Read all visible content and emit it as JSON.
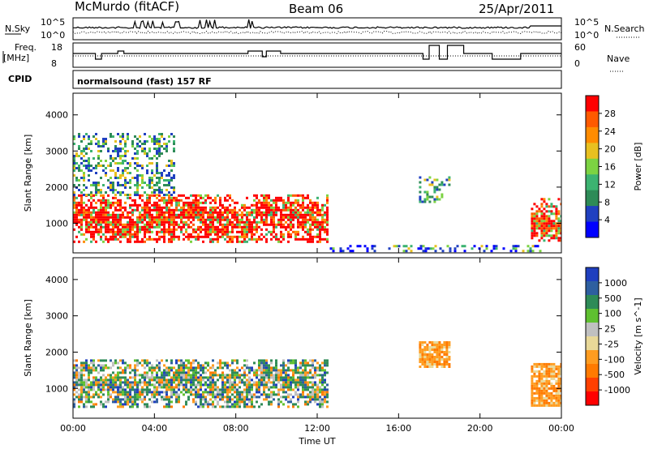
{
  "header": {
    "station": "McMurdo (fitACF)",
    "beam": "Beam 06",
    "date": "25/Apr/2011"
  },
  "top_panels": {
    "nsky_label": "N.Sky",
    "nsearch_label": "N.Search",
    "noise_ticks_left": [
      "10^5",
      "10^0"
    ],
    "noise_ticks_right": [
      "10^5",
      "10^0"
    ],
    "freq_label_line1": "Freq.",
    "freq_label_line2": "[MHz]",
    "freq_ticks": [
      "18",
      "8"
    ],
    "nave_label": "Nave",
    "nave_ticks": [
      "60",
      "0"
    ],
    "cpid_label": "CPID",
    "cpid_text": "normalsound (fast) 157 RF"
  },
  "colors": {
    "power_scale": [
      "#0000ff",
      "#2040c0",
      "#2e8b57",
      "#3cb371",
      "#7cd342",
      "#e8c020",
      "#ff8c00",
      "#ff5a00",
      "#ff0000"
    ],
    "velocity_scale": [
      "#1f3fbf",
      "#2e5fa0",
      "#2e8b57",
      "#5fc030",
      "#c0c0c0",
      "#e8d898",
      "#ff9c20",
      "#ff7a00",
      "#ff4000",
      "#ff0000"
    ],
    "accent": "#000000"
  },
  "chart_data": [
    {
      "type": "heatmap",
      "title": "",
      "xlabel": "Time UT",
      "ylabel": "Slant Range [km]",
      "x_ticks": [
        "00:00",
        "04:00",
        "08:00",
        "12:00",
        "16:00",
        "20:00",
        "00:00"
      ],
      "y_ticks": [
        "1000",
        "2000",
        "3000",
        "4000"
      ],
      "ylim": [
        180,
        4600
      ],
      "colorbar": {
        "label": "Power [dB]",
        "ticks": [
          "4",
          "8",
          "12",
          "16",
          "20",
          "24",
          "28"
        ],
        "range": [
          0,
          30
        ]
      },
      "regions": [
        {
          "t_start": "00:00",
          "t_end": "12:30",
          "range_km": [
            500,
            1800
          ],
          "level": "high"
        },
        {
          "t_start": "00:00",
          "t_end": "05:00",
          "range_km": [
            1800,
            3500
          ],
          "level": "patchy"
        },
        {
          "t_start": "12:30",
          "t_end": "23:00",
          "range_km": [
            200,
            400
          ],
          "level": "low"
        },
        {
          "t_start": "17:00",
          "t_end": "18:30",
          "range_km": [
            1600,
            2300
          ],
          "level": "patchy"
        },
        {
          "t_start": "22:30",
          "t_end": "24:00",
          "range_km": [
            500,
            1700
          ],
          "level": "high"
        }
      ]
    },
    {
      "type": "heatmap",
      "title": "",
      "xlabel": "Time UT",
      "ylabel": "Slant Range [km]",
      "x_ticks": [
        "00:00",
        "04:00",
        "08:00",
        "12:00",
        "16:00",
        "20:00",
        "00:00"
      ],
      "y_ticks": [
        "1000",
        "2000",
        "3000",
        "4000"
      ],
      "ylim": [
        180,
        4600
      ],
      "colorbar": {
        "label": "Velocity [m s^-1]",
        "ticks": [
          "1000",
          "500",
          "100",
          "25",
          "-25",
          "-100",
          "-500",
          "-1000"
        ],
        "range": [
          -1000,
          1000
        ]
      },
      "regions": [
        {
          "t_start": "00:00",
          "t_end": "12:30",
          "range_km": [
            500,
            1800
          ],
          "level": "mixed"
        },
        {
          "t_start": "17:00",
          "t_end": "18:30",
          "range_km": [
            1600,
            2300
          ],
          "level": "negative"
        },
        {
          "t_start": "22:30",
          "t_end": "24:00",
          "range_km": [
            500,
            1700
          ],
          "level": "negative"
        }
      ]
    }
  ]
}
